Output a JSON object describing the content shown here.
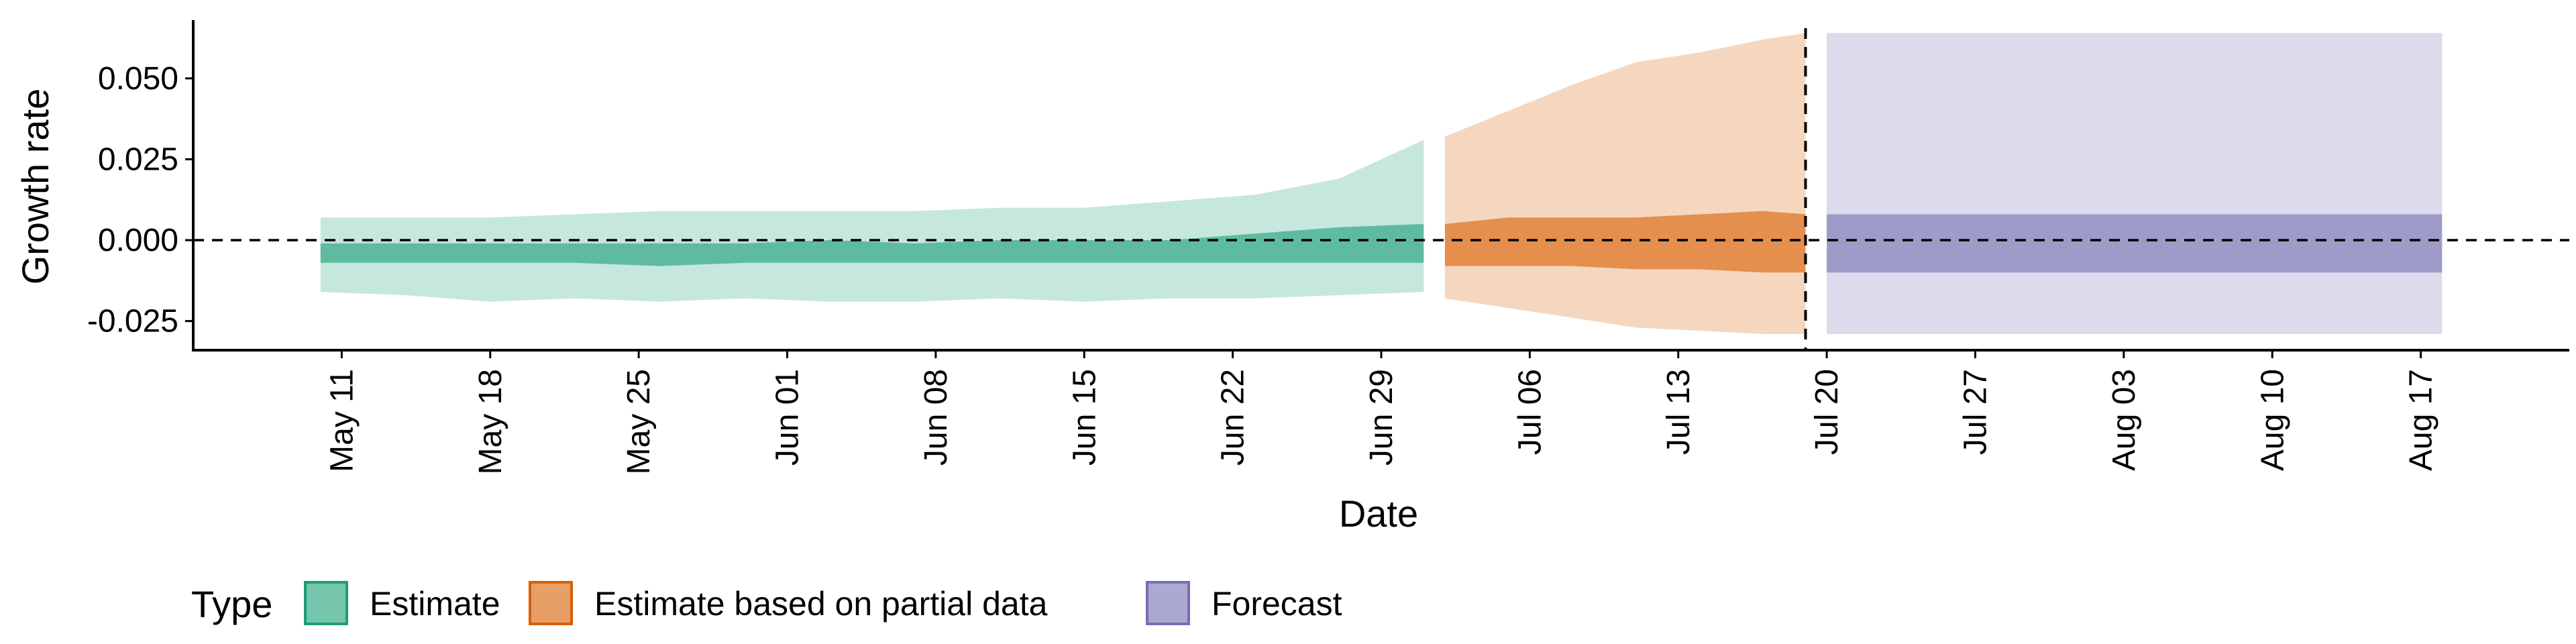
{
  "chart_data": {
    "type": "area",
    "title": "",
    "xlabel": "Date",
    "ylabel": "Growth rate",
    "xlim": [
      "2020-05-04",
      "2020-08-24"
    ],
    "ylim": [
      -0.034,
      0.068
    ],
    "grid": false,
    "zero_reference_line": 0,
    "vertical_reference_line": "2020-07-19",
    "x_ticks": [
      {
        "date": "2020-05-11",
        "label": "May 11"
      },
      {
        "date": "2020-05-18",
        "label": "May 18"
      },
      {
        "date": "2020-05-25",
        "label": "May 25"
      },
      {
        "date": "2020-06-01",
        "label": "Jun 01"
      },
      {
        "date": "2020-06-08",
        "label": "Jun 08"
      },
      {
        "date": "2020-06-15",
        "label": "Jun 15"
      },
      {
        "date": "2020-06-22",
        "label": "Jun 22"
      },
      {
        "date": "2020-06-29",
        "label": "Jun 29"
      },
      {
        "date": "2020-07-06",
        "label": "Jul 06"
      },
      {
        "date": "2020-07-13",
        "label": "Jul 13"
      },
      {
        "date": "2020-07-20",
        "label": "Jul 20"
      },
      {
        "date": "2020-07-27",
        "label": "Jul 27"
      },
      {
        "date": "2020-08-03",
        "label": "Aug 03"
      },
      {
        "date": "2020-08-10",
        "label": "Aug 10"
      },
      {
        "date": "2020-08-17",
        "label": "Aug 17"
      }
    ],
    "y_ticks": [
      {
        "value": 0.05,
        "label": "0.050"
      },
      {
        "value": 0.025,
        "label": "0.025"
      },
      {
        "value": 0.0,
        "label": "0.000"
      },
      {
        "value": -0.025,
        "label": "-0.025"
      }
    ],
    "legend": {
      "title": "Type",
      "position": "bottom",
      "entries": [
        {
          "label": "Estimate",
          "color": "#1b9e77"
        },
        {
          "label": "Estimate based on partial data",
          "color": "#d95f02"
        },
        {
          "label": "Forecast",
          "color": "#7570b3"
        }
      ]
    },
    "series": [
      {
        "name": "Estimate",
        "color": "#1b9e77",
        "points": [
          {
            "date": "2020-05-10",
            "outer": [
              -0.016,
              0.007
            ],
            "inner": [
              -0.007,
              -0.001
            ]
          },
          {
            "date": "2020-05-14",
            "outer": [
              -0.017,
              0.007
            ],
            "inner": [
              -0.007,
              -0.001
            ]
          },
          {
            "date": "2020-05-18",
            "outer": [
              -0.019,
              0.007
            ],
            "inner": [
              -0.007,
              -0.001
            ]
          },
          {
            "date": "2020-05-22",
            "outer": [
              -0.018,
              0.008
            ],
            "inner": [
              -0.007,
              -0.001
            ]
          },
          {
            "date": "2020-05-26",
            "outer": [
              -0.019,
              0.009
            ],
            "inner": [
              -0.008,
              -0.001
            ]
          },
          {
            "date": "2020-05-30",
            "outer": [
              -0.018,
              0.009
            ],
            "inner": [
              -0.007,
              -0.001
            ]
          },
          {
            "date": "2020-06-03",
            "outer": [
              -0.019,
              0.009
            ],
            "inner": [
              -0.007,
              0.0
            ]
          },
          {
            "date": "2020-06-07",
            "outer": [
              -0.019,
              0.009
            ],
            "inner": [
              -0.007,
              -0.001
            ]
          },
          {
            "date": "2020-06-11",
            "outer": [
              -0.018,
              0.01
            ],
            "inner": [
              -0.007,
              0.0
            ]
          },
          {
            "date": "2020-06-15",
            "outer": [
              -0.019,
              0.01
            ],
            "inner": [
              -0.007,
              0.0
            ]
          },
          {
            "date": "2020-06-19",
            "outer": [
              -0.018,
              0.012
            ],
            "inner": [
              -0.007,
              0.0
            ]
          },
          {
            "date": "2020-06-23",
            "outer": [
              -0.018,
              0.014
            ],
            "inner": [
              -0.007,
              0.002
            ]
          },
          {
            "date": "2020-06-27",
            "outer": [
              -0.017,
              0.019
            ],
            "inner": [
              -0.007,
              0.004
            ]
          },
          {
            "date": "2020-07-01",
            "outer": [
              -0.016,
              0.031
            ],
            "inner": [
              -0.007,
              0.005
            ]
          }
        ]
      },
      {
        "name": "Estimate based on partial data",
        "color": "#d95f02",
        "points": [
          {
            "date": "2020-07-02",
            "outer": [
              -0.018,
              0.032
            ],
            "inner": [
              -0.008,
              0.005
            ]
          },
          {
            "date": "2020-07-05",
            "outer": [
              -0.021,
              0.04
            ],
            "inner": [
              -0.008,
              0.007
            ]
          },
          {
            "date": "2020-07-08",
            "outer": [
              -0.024,
              0.048
            ],
            "inner": [
              -0.008,
              0.007
            ]
          },
          {
            "date": "2020-07-11",
            "outer": [
              -0.027,
              0.055
            ],
            "inner": [
              -0.009,
              0.007
            ]
          },
          {
            "date": "2020-07-14",
            "outer": [
              -0.028,
              0.058
            ],
            "inner": [
              -0.009,
              0.008
            ]
          },
          {
            "date": "2020-07-17",
            "outer": [
              -0.029,
              0.062
            ],
            "inner": [
              -0.01,
              0.009
            ]
          },
          {
            "date": "2020-07-19",
            "outer": [
              -0.029,
              0.064
            ],
            "inner": [
              -0.01,
              0.008
            ]
          }
        ]
      },
      {
        "name": "Forecast",
        "color": "#7570b3",
        "points": [
          {
            "date": "2020-07-20",
            "outer": [
              -0.029,
              0.064
            ],
            "inner": [
              -0.01,
              0.008
            ]
          },
          {
            "date": "2020-08-18",
            "outer": [
              -0.029,
              0.064
            ],
            "inner": [
              -0.01,
              0.008
            ]
          }
        ]
      }
    ]
  }
}
